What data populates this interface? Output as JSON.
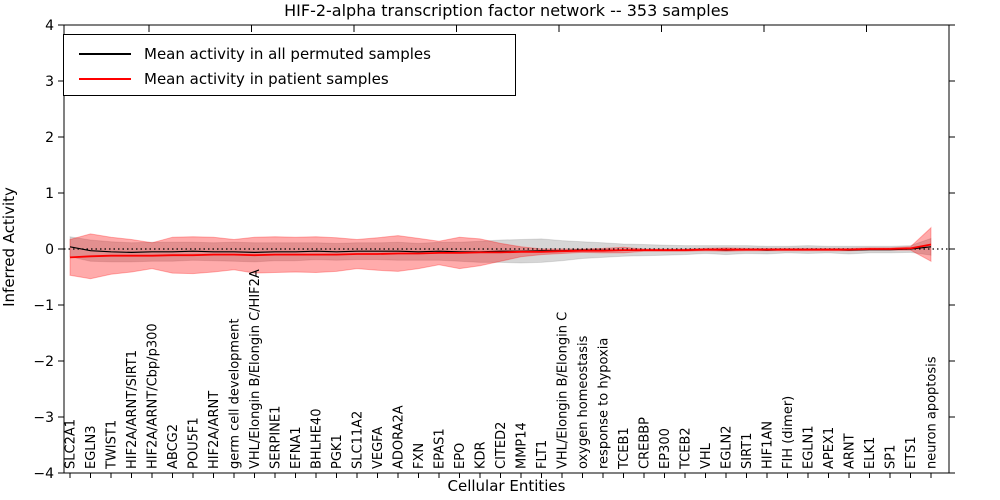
{
  "title": "HIF-2-alpha transcription factor network -- 353 samples",
  "legend": {
    "items": [
      {
        "label": "Mean activity in all permuted samples",
        "color": "#000000"
      },
      {
        "label": "Mean activity in patient samples",
        "color": "#ff0000"
      }
    ]
  },
  "chart_data": {
    "type": "line",
    "title": "HIF-2-alpha transcription factor network -- 353 samples",
    "xlabel": "Cellular Entities",
    "ylabel": "Inferred Activity",
    "ylim": [
      -4,
      4
    ],
    "yticks": [
      -4,
      -3,
      -2,
      -1,
      0,
      1,
      2,
      3,
      4
    ],
    "grid": false,
    "zero_line": "dotted",
    "legend_position": "upper left",
    "categories": [
      "SLC2A1",
      "EGLN3",
      "TWIST1",
      "HIF2A/ARNT/SIRT1",
      "HIF2A/ARNT/Cbp/p300",
      "ABCG2",
      "POU5F1",
      "HIF2A/ARNT",
      "germ cell development",
      "VHL/Elongin B/Elongin C/HIF2A",
      "SERPINE1",
      "EFNA1",
      "BHLHE40",
      "PGK1",
      "SLC11A2",
      "VEGFA",
      "ADORA2A",
      "FXN",
      "EPAS1",
      "EPO",
      "KDR",
      "CITED2",
      "MMP14",
      "FLT1",
      "VHL/Elongin B/Elongin C",
      "oxygen homeostasis",
      "response to hypoxia",
      "TCEB1",
      "CREBBP",
      "EP300",
      "TCEB2",
      "VHL",
      "EGLN2",
      "SIRT1",
      "HIF1AN",
      "FIH (dimer)",
      "EGLN1",
      "APEX1",
      "ARNT",
      "ELK1",
      "SP1",
      "ETS1",
      "neuron apoptosis"
    ],
    "series": [
      {
        "name": "Mean activity in all permuted samples",
        "style": "mean line with std band",
        "color": "#000000",
        "band_fill": "rgba(0,0,0,0.16)",
        "band_edge": "rgba(0,0,0,0.10)",
        "mean": [
          0.04,
          -0.03,
          -0.05,
          -0.06,
          -0.05,
          -0.05,
          -0.04,
          -0.05,
          -0.05,
          -0.06,
          -0.05,
          -0.05,
          -0.04,
          -0.05,
          -0.04,
          -0.04,
          -0.04,
          -0.05,
          -0.04,
          -0.05,
          -0.05,
          -0.04,
          -0.04,
          -0.03,
          -0.03,
          -0.02,
          -0.02,
          -0.02,
          -0.02,
          -0.02,
          -0.02,
          -0.01,
          -0.02,
          -0.01,
          -0.02,
          -0.01,
          -0.01,
          -0.01,
          -0.02,
          -0.01,
          -0.01,
          0.0,
          0.04
        ],
        "std": [
          0.18,
          0.19,
          0.18,
          0.17,
          0.17,
          0.17,
          0.16,
          0.16,
          0.17,
          0.17,
          0.16,
          0.16,
          0.15,
          0.15,
          0.15,
          0.15,
          0.16,
          0.15,
          0.16,
          0.17,
          0.19,
          0.2,
          0.21,
          0.21,
          0.18,
          0.15,
          0.13,
          0.11,
          0.1,
          0.09,
          0.08,
          0.07,
          0.08,
          0.07,
          0.07,
          0.06,
          0.07,
          0.06,
          0.07,
          0.06,
          0.06,
          0.06,
          0.15
        ]
      },
      {
        "name": "Mean activity in patient samples",
        "style": "mean line with std band",
        "color": "#ff0000",
        "band_fill": "rgba(255,0,0,0.33)",
        "band_edge": "rgba(255,0,0,0.28)",
        "mean": [
          -0.15,
          -0.13,
          -0.12,
          -0.12,
          -0.12,
          -0.11,
          -0.11,
          -0.1,
          -0.1,
          -0.11,
          -0.1,
          -0.1,
          -0.1,
          -0.1,
          -0.09,
          -0.09,
          -0.08,
          -0.08,
          -0.07,
          -0.07,
          -0.06,
          -0.06,
          -0.05,
          -0.05,
          -0.04,
          -0.03,
          -0.03,
          -0.02,
          -0.02,
          -0.02,
          -0.02,
          -0.01,
          -0.01,
          -0.01,
          -0.01,
          -0.01,
          -0.01,
          -0.01,
          -0.01,
          0.0,
          0.0,
          0.01,
          0.08
        ],
        "std": [
          0.32,
          0.4,
          0.33,
          0.29,
          0.23,
          0.32,
          0.33,
          0.31,
          0.27,
          0.32,
          0.32,
          0.31,
          0.32,
          0.3,
          0.26,
          0.29,
          0.32,
          0.27,
          0.21,
          0.28,
          0.24,
          0.16,
          0.09,
          0.05,
          0.04,
          0.03,
          0.04,
          0.05,
          0.02,
          0.02,
          0.02,
          0.02,
          0.03,
          0.02,
          0.02,
          0.02,
          0.02,
          0.02,
          0.02,
          0.02,
          0.02,
          0.03,
          0.3
        ]
      }
    ]
  }
}
